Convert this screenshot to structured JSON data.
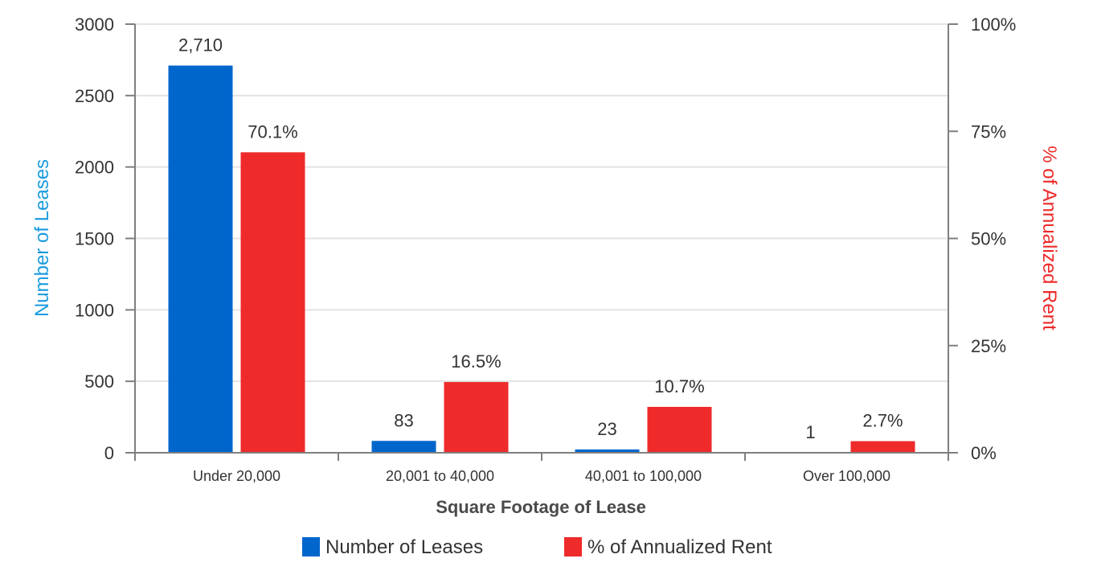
{
  "chart_data": {
    "type": "bar",
    "categories": [
      "Under 20,000",
      "20,001 to 40,000",
      "40,001 to 100,000",
      "Over 100,000"
    ],
    "series": [
      {
        "name": "Number of Leases",
        "axis": "left",
        "color": "#0066cc",
        "values": [
          2710,
          83,
          23,
          1
        ],
        "labels": [
          "2,710",
          "83",
          "23",
          "1"
        ]
      },
      {
        "name": "% of Annualized Rent",
        "axis": "right",
        "color": "#ee2a2a",
        "values": [
          70.1,
          16.5,
          10.7,
          2.7
        ],
        "labels": [
          "70.1%",
          "16.5%",
          "10.7%",
          "2.7%"
        ]
      }
    ],
    "xlabel": "Square Footage of Lease",
    "ylabel": "Number of Leases",
    "ylabel_color": "#1a9be0",
    "ylabel_right": "% of Annualized Rent",
    "ylabel_right_color": "#ee2a2a",
    "ylim": [
      0,
      3000
    ],
    "ylim_right": [
      0,
      100
    ],
    "yticks": [
      "0",
      "500",
      "1000",
      "1500",
      "2000",
      "2500",
      "3000"
    ],
    "yticks_right": [
      "0%",
      "25%",
      "50%",
      "75%",
      "100%"
    ],
    "grid": true,
    "legend": "bottom-center"
  }
}
